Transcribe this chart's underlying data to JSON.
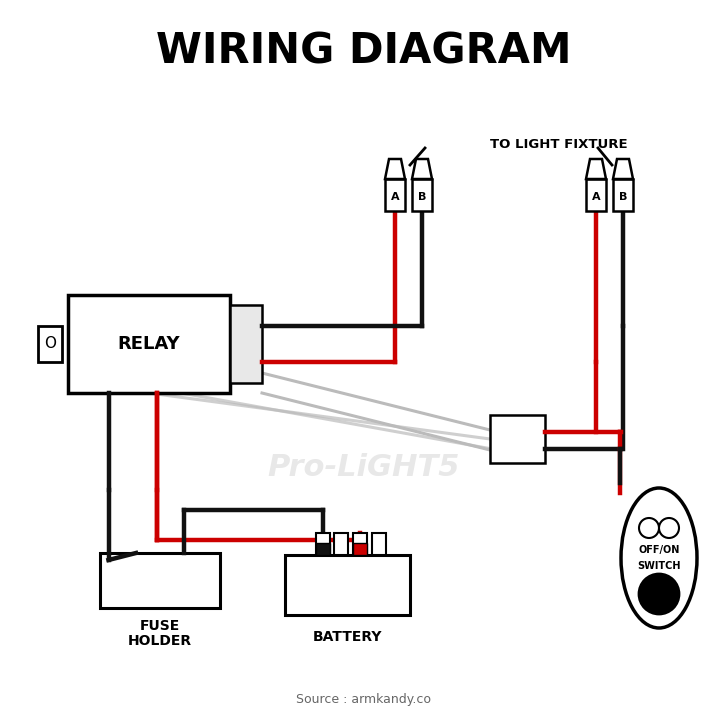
{
  "title": "WIRING DIAGRAM",
  "source_text": "Source : armkandy.co",
  "bg_color": "#ffffff",
  "title_fontsize": 30,
  "title_fontweight": "bold",
  "wire_colors": {
    "red": "#cc0000",
    "black": "#111111",
    "gray": "#bbbbbb"
  },
  "label_to_light": "TO LIGHT FIXTURE",
  "watermark": "Pro-LiGHT5"
}
